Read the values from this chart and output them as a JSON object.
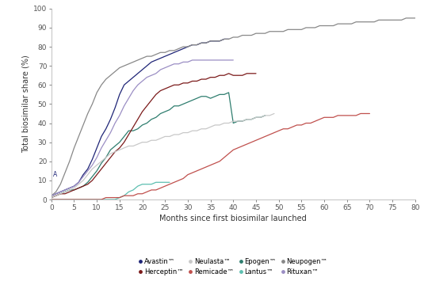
{
  "xlabel": "Months since first biosimilar launched",
  "ylabel": "Total biosimilar share (%)",
  "xlim": [
    0,
    80
  ],
  "ylim": [
    0,
    100
  ],
  "xticks": [
    0,
    5,
    10,
    15,
    20,
    25,
    30,
    35,
    40,
    45,
    50,
    55,
    60,
    65,
    70,
    75,
    80
  ],
  "yticks": [
    0,
    10,
    20,
    30,
    40,
    50,
    60,
    70,
    80,
    90,
    100
  ],
  "background_color": "#ffffff",
  "series": [
    {
      "name": "Avastin™",
      "color": "#1f2577",
      "x": [
        0,
        1,
        2,
        3,
        4,
        5,
        6,
        7,
        8,
        9,
        10,
        11,
        12,
        13,
        14,
        15,
        16,
        17,
        18,
        19,
        20,
        21,
        22,
        23,
        24,
        25,
        26,
        27,
        28,
        29,
        30,
        31,
        32,
        33,
        34,
        35,
        36,
        37,
        38,
        39
      ],
      "y": [
        2,
        3,
        4,
        5,
        6,
        7,
        9,
        13,
        16,
        21,
        27,
        33,
        37,
        42,
        48,
        55,
        60,
        62,
        64,
        66,
        68,
        70,
        72,
        73,
        74,
        75,
        76,
        77,
        78,
        79,
        80,
        81,
        81,
        82,
        82,
        83,
        83,
        83,
        84,
        84
      ]
    },
    {
      "name": "Epogen™",
      "color": "#2e7d6e",
      "x": [
        0,
        1,
        2,
        3,
        4,
        5,
        6,
        7,
        8,
        9,
        10,
        11,
        12,
        13,
        14,
        15,
        16,
        17,
        18,
        19,
        20,
        21,
        22,
        23,
        24,
        25,
        26,
        27,
        28,
        29,
        30,
        31,
        32,
        33,
        34,
        35,
        36,
        37,
        38,
        39,
        40,
        41,
        42,
        43,
        44,
        45,
        46,
        47
      ],
      "y": [
        1,
        2,
        3,
        4,
        5,
        5,
        6,
        7,
        9,
        12,
        15,
        19,
        22,
        26,
        28,
        30,
        33,
        36,
        36,
        37,
        39,
        40,
        42,
        43,
        45,
        46,
        47,
        49,
        49,
        50,
        51,
        52,
        53,
        54,
        54,
        53,
        54,
        55,
        55,
        56,
        40,
        41,
        41,
        42,
        42,
        43,
        43,
        44
      ]
    },
    {
      "name": "Herceptin™",
      "color": "#7b1a1a",
      "x": [
        0,
        1,
        2,
        3,
        4,
        5,
        6,
        7,
        8,
        9,
        10,
        11,
        12,
        13,
        14,
        15,
        16,
        17,
        18,
        19,
        20,
        21,
        22,
        23,
        24,
        25,
        26,
        27,
        28,
        29,
        30,
        31,
        32,
        33,
        34,
        35,
        36,
        37,
        38,
        39,
        40,
        41,
        42,
        43,
        44,
        45
      ],
      "y": [
        1,
        2,
        3,
        3,
        4,
        5,
        6,
        7,
        8,
        10,
        13,
        16,
        19,
        22,
        25,
        27,
        30,
        34,
        38,
        42,
        46,
        49,
        52,
        55,
        57,
        58,
        59,
        60,
        60,
        61,
        61,
        62,
        62,
        63,
        63,
        64,
        64,
        65,
        65,
        66,
        65,
        65,
        65,
        66,
        66,
        66
      ]
    },
    {
      "name": "Lantus™",
      "color": "#5dbfb0",
      "x": [
        0,
        1,
        2,
        3,
        4,
        5,
        6,
        7,
        8,
        9,
        10,
        11,
        12,
        13,
        14,
        15,
        16,
        17,
        18,
        19,
        20,
        21,
        22,
        23,
        24,
        25,
        26
      ],
      "y": [
        0,
        0,
        0,
        0,
        0,
        0,
        0,
        0,
        0,
        0,
        0,
        0,
        0,
        0,
        0,
        1,
        2,
        4,
        5,
        7,
        8,
        8,
        8,
        9,
        9,
        9,
        9
      ]
    },
    {
      "name": "Neulasta™",
      "color": "#c8c8c8",
      "x": [
        0,
        1,
        2,
        3,
        4,
        5,
        6,
        7,
        8,
        9,
        10,
        11,
        12,
        13,
        14,
        15,
        16,
        17,
        18,
        19,
        20,
        21,
        22,
        23,
        24,
        25,
        26,
        27,
        28,
        29,
        30,
        31,
        32,
        33,
        34,
        35,
        36,
        37,
        38,
        39,
        40,
        41,
        42,
        43,
        44,
        45,
        46,
        47,
        48,
        49
      ],
      "y": [
        1,
        2,
        3,
        4,
        5,
        6,
        8,
        10,
        13,
        16,
        18,
        20,
        22,
        24,
        25,
        26,
        27,
        28,
        28,
        29,
        30,
        30,
        31,
        31,
        32,
        33,
        33,
        34,
        34,
        35,
        35,
        36,
        36,
        37,
        37,
        38,
        39,
        39,
        40,
        40,
        41,
        41,
        41,
        42,
        42,
        43,
        43,
        44,
        44,
        45
      ]
    },
    {
      "name": "Neupogen™",
      "color": "#888888",
      "x": [
        0,
        1,
        2,
        3,
        4,
        5,
        6,
        7,
        8,
        9,
        10,
        11,
        12,
        13,
        14,
        15,
        16,
        17,
        18,
        19,
        20,
        21,
        22,
        23,
        24,
        25,
        26,
        27,
        28,
        29,
        30,
        31,
        32,
        33,
        34,
        35,
        36,
        37,
        38,
        39,
        40,
        41,
        42,
        43,
        44,
        45,
        46,
        47,
        48,
        49,
        50,
        51,
        52,
        53,
        54,
        55,
        56,
        57,
        58,
        59,
        60,
        61,
        62,
        63,
        64,
        65,
        66,
        67,
        68,
        69,
        70,
        71,
        72,
        73,
        74,
        75,
        76,
        77,
        78,
        79,
        80
      ],
      "y": [
        2,
        4,
        8,
        14,
        20,
        27,
        33,
        39,
        45,
        50,
        56,
        60,
        63,
        65,
        67,
        69,
        70,
        71,
        72,
        73,
        74,
        75,
        75,
        76,
        77,
        77,
        78,
        78,
        79,
        80,
        80,
        81,
        81,
        82,
        82,
        83,
        83,
        83,
        84,
        84,
        85,
        85,
        86,
        86,
        86,
        87,
        87,
        87,
        88,
        88,
        88,
        88,
        89,
        89,
        89,
        89,
        90,
        90,
        90,
        91,
        91,
        91,
        91,
        92,
        92,
        92,
        92,
        93,
        93,
        93,
        93,
        93,
        94,
        94,
        94,
        94,
        94,
        94,
        95,
        95,
        95
      ]
    },
    {
      "name": "Remicade™",
      "color": "#c0504d",
      "x": [
        0,
        1,
        2,
        3,
        4,
        5,
        6,
        7,
        8,
        9,
        10,
        11,
        12,
        13,
        14,
        15,
        16,
        17,
        18,
        19,
        20,
        21,
        22,
        23,
        24,
        25,
        26,
        27,
        28,
        29,
        30,
        31,
        32,
        33,
        34,
        35,
        36,
        37,
        38,
        39,
        40,
        41,
        42,
        43,
        44,
        45,
        46,
        47,
        48,
        49,
        50,
        51,
        52,
        53,
        54,
        55,
        56,
        57,
        58,
        59,
        60,
        61,
        62,
        63,
        64,
        65,
        66,
        67,
        68,
        69,
        70
      ],
      "y": [
        0,
        0,
        0,
        0,
        0,
        0,
        0,
        0,
        0,
        0,
        0,
        0,
        1,
        1,
        1,
        1,
        2,
        2,
        2,
        3,
        3,
        4,
        5,
        5,
        6,
        7,
        8,
        9,
        10,
        11,
        13,
        14,
        15,
        16,
        17,
        18,
        19,
        20,
        22,
        24,
        26,
        27,
        28,
        29,
        30,
        31,
        32,
        33,
        34,
        35,
        36,
        37,
        37,
        38,
        39,
        39,
        40,
        40,
        41,
        42,
        43,
        43,
        43,
        44,
        44,
        44,
        44,
        44,
        45,
        45,
        45
      ]
    },
    {
      "name": "Rituxan™",
      "color": "#9b8ec4",
      "x": [
        0,
        1,
        2,
        3,
        4,
        5,
        6,
        7,
        8,
        9,
        10,
        11,
        12,
        13,
        14,
        15,
        16,
        17,
        18,
        19,
        20,
        21,
        22,
        23,
        24,
        25,
        26,
        27,
        28,
        29,
        30,
        31,
        32,
        33,
        34,
        35,
        36,
        37,
        38,
        39,
        40
      ],
      "y": [
        2,
        3,
        4,
        5,
        6,
        7,
        9,
        12,
        15,
        18,
        22,
        27,
        31,
        35,
        40,
        44,
        49,
        53,
        57,
        60,
        62,
        64,
        65,
        66,
        68,
        69,
        70,
        71,
        71,
        72,
        72,
        73,
        73,
        73,
        73,
        73,
        73,
        73,
        73,
        73,
        73
      ]
    }
  ],
  "legend_order": [
    {
      "name": "Avastin™",
      "color": "#1f2577"
    },
    {
      "name": "Herceptin™",
      "color": "#7b1a1a"
    },
    {
      "name": "Neulasta™",
      "color": "#c8c8c8"
    },
    {
      "name": "Remicade™",
      "color": "#c0504d"
    },
    {
      "name": "Epogen™",
      "color": "#2e7d6e"
    },
    {
      "name": "Lantus™",
      "color": "#5dbfb0"
    },
    {
      "name": "Neupogen™",
      "color": "#888888"
    },
    {
      "name": "Rituxan™",
      "color": "#9b8ec4"
    }
  ]
}
